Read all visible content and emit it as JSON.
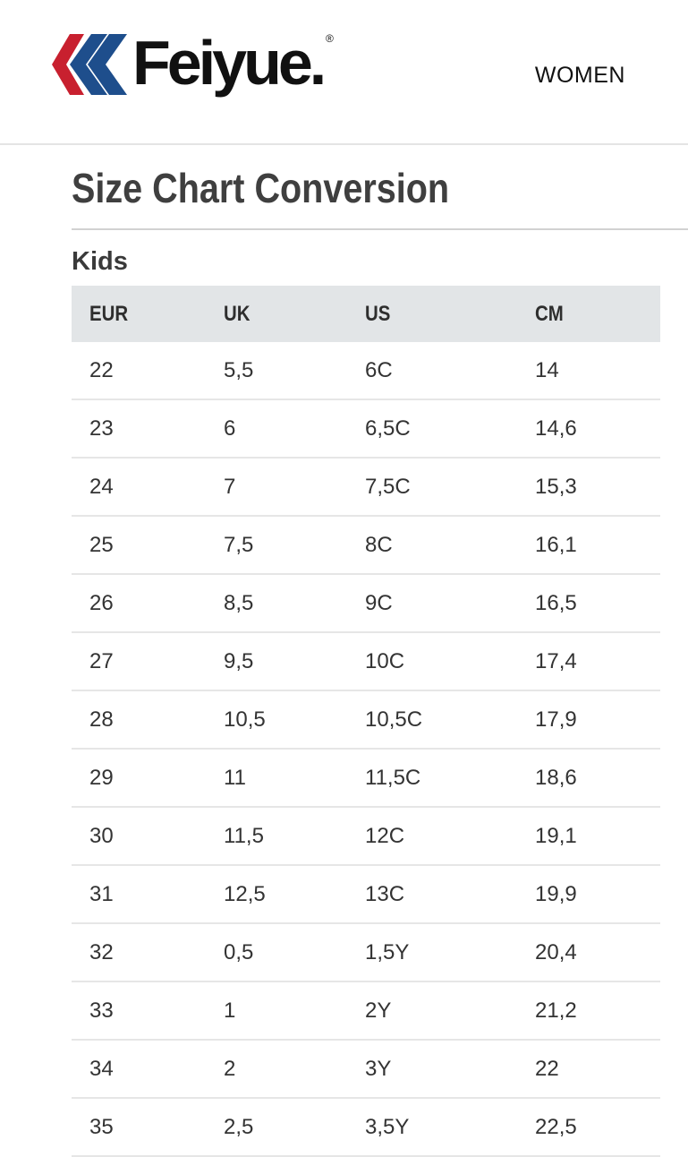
{
  "brand": {
    "name": "Feiyue.",
    "registered": "®",
    "colors": {
      "red": "#c8202f",
      "blue": "#1e4e8c",
      "text": "#111111"
    }
  },
  "nav": {
    "women": "WOMEN"
  },
  "page": {
    "title": "Size Chart Conversion"
  },
  "section": {
    "title": "Kids"
  },
  "table": {
    "headers": [
      "EUR",
      "UK",
      "US",
      "CM"
    ],
    "rows": [
      [
        "22",
        "5,5",
        "6C",
        "14"
      ],
      [
        "23",
        "6",
        "6,5C",
        "14,6"
      ],
      [
        "24",
        "7",
        "7,5C",
        "15,3"
      ],
      [
        "25",
        "7,5",
        "8C",
        "16,1"
      ],
      [
        "26",
        "8,5",
        "9C",
        "16,5"
      ],
      [
        "27",
        "9,5",
        "10C",
        "17,4"
      ],
      [
        "28",
        "10,5",
        "10,5C",
        "17,9"
      ],
      [
        "29",
        "11",
        "11,5C",
        "18,6"
      ],
      [
        "30",
        "11,5",
        "12C",
        "19,1"
      ],
      [
        "31",
        "12,5",
        "13C",
        "19,9"
      ],
      [
        "32",
        "0,5",
        "1,5Y",
        "20,4"
      ],
      [
        "33",
        "1",
        "2Y",
        "21,2"
      ],
      [
        "34",
        "2",
        "3Y",
        "22"
      ],
      [
        "35",
        "2,5",
        "3,5Y",
        "22,5"
      ]
    ]
  }
}
